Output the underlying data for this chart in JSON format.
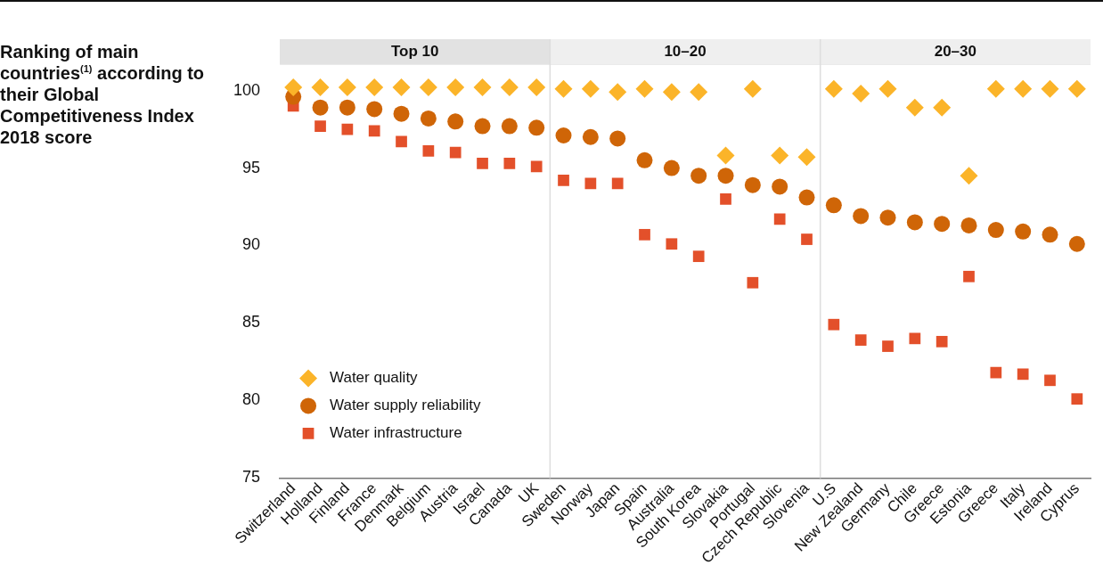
{
  "chart_data": {
    "type": "scatter",
    "title": "Ranking of main countries$^{(1)}$ according to their Global Competitiveness Index 2018 score",
    "categories": [
      "Switzerland",
      "Holland",
      "Finland",
      "France",
      "Denmark",
      "Belgium",
      "Austria",
      "Israel",
      "Canada",
      "UK",
      "Sweden",
      "Norway",
      "Japan",
      "Spain",
      "Australia",
      "South Korea",
      "Slovakia",
      "Portugal",
      "Czech Republic",
      "Slovenia",
      "U.S",
      "New Zealand",
      "Germany",
      "Chile",
      "Greece",
      "Estonia",
      "Greece",
      "Italy",
      "Ireland",
      "Cyprus"
    ],
    "series": [
      {
        "name": "Water quality",
        "color": "#fbb429",
        "marker": "diamond",
        "values": [
          100.2,
          100.2,
          100.2,
          100.2,
          100.2,
          100.2,
          100.2,
          100.2,
          100.2,
          100.2,
          100.1,
          100.1,
          99.9,
          100.1,
          99.9,
          99.9,
          95.8,
          100.1,
          95.8,
          95.7,
          100.1,
          99.8,
          100.1,
          98.9,
          98.9,
          94.5,
          100.1,
          100.1,
          100.1,
          100.1
        ]
      },
      {
        "name": "Water supply reliability",
        "color": "#cf6507",
        "marker": "circle",
        "values": [
          99.6,
          98.9,
          98.9,
          98.8,
          98.5,
          98.2,
          98.0,
          97.7,
          97.7,
          97.6,
          97.1,
          97.0,
          96.9,
          95.5,
          95.0,
          94.5,
          94.5,
          93.9,
          93.8,
          93.1,
          92.6,
          91.9,
          91.8,
          91.5,
          91.4,
          91.3,
          91.0,
          90.9,
          90.7,
          90.1
        ]
      },
      {
        "name": "Water infrastructure",
        "color": "#e3502a",
        "marker": "square",
        "values": [
          99.0,
          97.7,
          97.5,
          97.4,
          96.7,
          96.1,
          96.0,
          95.3,
          95.3,
          95.1,
          94.2,
          94.0,
          94.0,
          90.7,
          90.1,
          89.3,
          93.0,
          87.6,
          91.7,
          90.4,
          84.9,
          83.9,
          83.5,
          84.0,
          83.8,
          88.0,
          81.8,
          81.7,
          81.3,
          80.1
        ]
      }
    ],
    "ylim": [
      75,
      101.7
    ],
    "yticks": [
      75,
      80,
      85,
      90,
      95,
      100
    ],
    "grid": false,
    "legend": "bottom left",
    "annotations": [
      "Top 10",
      "10–20",
      "20–30"
    ]
  }
}
